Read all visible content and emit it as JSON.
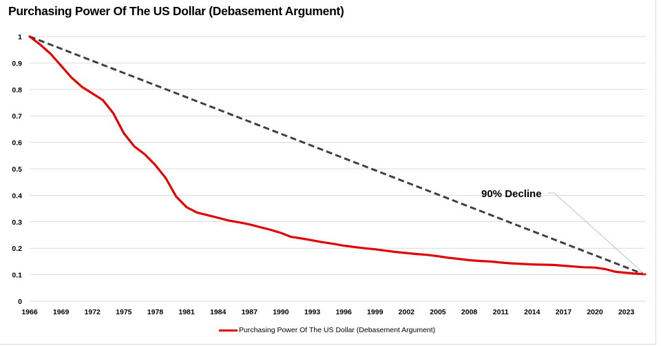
{
  "chart_data": {
    "type": "line",
    "title": "Purchasing Power Of The US Dollar (Debasement Argument)",
    "xlabel": "",
    "ylabel": "",
    "xlim": [
      1966,
      2024.8
    ],
    "ylim": [
      0,
      1
    ],
    "grid": true,
    "legend_position": "bottom",
    "y_ticks": [
      "0",
      "0.1",
      "0.2",
      "0.3",
      "0.4",
      "0.5",
      "0.6",
      "0.7",
      "0.8",
      "0.9",
      "1"
    ],
    "x_ticks": [
      "1966",
      "1969",
      "1972",
      "1975",
      "1978",
      "1981",
      "1984",
      "1987",
      "1990",
      "1993",
      "1996",
      "1999",
      "2002",
      "2005",
      "2008",
      "2011",
      "2014",
      "2017",
      "2020",
      "2023"
    ],
    "series": [
      {
        "name": "Purchasing Power Of The US Dollar (Debasement Argument)",
        "color": "#e00000",
        "style": "solid",
        "x": [
          1966,
          1967,
          1968,
          1969,
          1970,
          1971,
          1972,
          1973,
          1974,
          1975,
          1976,
          1977,
          1978,
          1979,
          1980,
          1981,
          1982,
          1983,
          1984,
          1985,
          1986,
          1987,
          1988,
          1989,
          1990,
          1991,
          1992,
          1993,
          1994,
          1995,
          1996,
          1997,
          1998,
          1999,
          2000,
          2001,
          2002,
          2003,
          2004,
          2005,
          2006,
          2007,
          2008,
          2009,
          2010,
          2011,
          2012,
          2013,
          2014,
          2015,
          2016,
          2017,
          2018,
          2019,
          2020,
          2021,
          2022,
          2023,
          2024,
          2024.8
        ],
        "values": [
          1.0,
          0.97,
          0.935,
          0.89,
          0.845,
          0.81,
          0.785,
          0.76,
          0.71,
          0.635,
          0.585,
          0.555,
          0.515,
          0.465,
          0.395,
          0.355,
          0.335,
          0.325,
          0.315,
          0.305,
          0.298,
          0.29,
          0.28,
          0.27,
          0.258,
          0.243,
          0.237,
          0.23,
          0.223,
          0.217,
          0.21,
          0.205,
          0.2,
          0.196,
          0.191,
          0.186,
          0.182,
          0.178,
          0.175,
          0.17,
          0.164,
          0.16,
          0.155,
          0.152,
          0.15,
          0.146,
          0.143,
          0.141,
          0.139,
          0.138,
          0.137,
          0.134,
          0.131,
          0.128,
          0.127,
          0.121,
          0.111,
          0.107,
          0.104,
          0.102
        ]
      },
      {
        "name": "90% Decline",
        "color": "#404040",
        "style": "dashed",
        "x": [
          1966,
          2024.8
        ],
        "values": [
          1.0,
          0.1
        ]
      }
    ],
    "annotations": [
      {
        "text": "90% Decline",
        "points_to": {
          "x": 2024.8,
          "y": 0.1
        }
      }
    ]
  }
}
